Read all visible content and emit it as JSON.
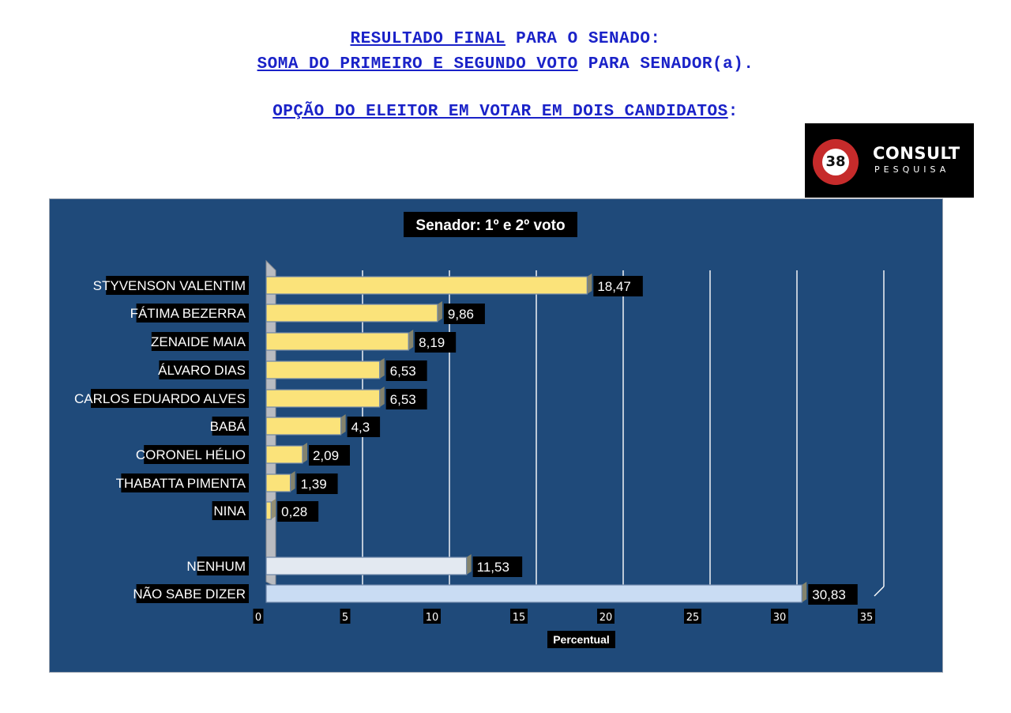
{
  "header": {
    "line1_underlined": "RESULTADO FINAL",
    "line1_rest": " PARA O SENADO:",
    "line2_underlined": "SOMA DO PRIMEIRO E SEGUNDO VOTO",
    "line2_rest": " PARA SENADOR(a).",
    "line3_underlined": "OPÇÃO DO ELEITOR EM VOTAR EM DOIS CANDIDATOS",
    "line3_rest": ":"
  },
  "logo": {
    "badge_text": "38",
    "name": "CONSULT",
    "subtitle": "PESQUISA",
    "colors": {
      "badge": "#c62b2b",
      "background": "#000000"
    }
  },
  "colors": {
    "plot_background": "#1f4a7a",
    "candidate_bar": "#fbe37a",
    "nenhum_bar": "#e3e9f1",
    "nao_sabe_bar": "#c9dcf3",
    "label_box": "#000000",
    "text": "#ffffff"
  },
  "chart_data": {
    "type": "bar",
    "orientation": "horizontal",
    "title": "Senador: 1º e 2º voto",
    "xlabel": "Percentual",
    "ylabel": "",
    "xlim": [
      0,
      35
    ],
    "xticks": [
      "0",
      "5",
      "10",
      "15",
      "20",
      "25",
      "30",
      "35"
    ],
    "grid": true,
    "categories": [
      "STYVENSON VALENTIM",
      "FÁTIMA BEZERRA",
      "ZENAIDE MAIA",
      "ÁLVARO DIAS",
      "CARLOS EDUARDO ALVES",
      "BABÁ",
      "CORONEL HÉLIO",
      "THABATTA PIMENTA",
      "NINA",
      "NENHUM",
      "NÃO SABE DIZER"
    ],
    "values": [
      18.47,
      9.86,
      8.19,
      6.53,
      6.53,
      4.3,
      2.09,
      1.39,
      0.28,
      11.53,
      30.83
    ],
    "value_labels": [
      "18,47",
      "9,86",
      "8,19",
      "6,53",
      "6,53",
      "4,3",
      "2,09",
      "1,39",
      "0,28",
      "11,53",
      "30,83"
    ]
  }
}
